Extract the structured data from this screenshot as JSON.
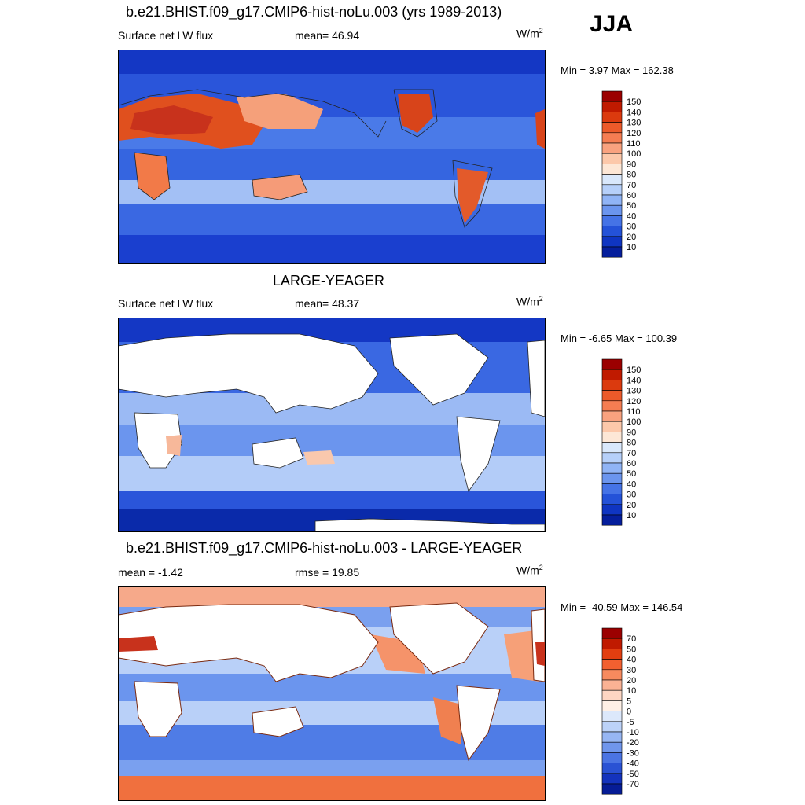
{
  "season": "JJA",
  "colors": {
    "ocean_deep": "#1a3fcf",
    "ocean_mid": "#3f6fe6",
    "ocean_light": "#a9c5f7",
    "land_hot": "#c8321c",
    "land_warm": "#f08a62",
    "land_mask": "#ffffff",
    "coast": "#222222"
  },
  "panels": [
    {
      "title": "b.e21.BHIST.f09_g17.CMIP6-hist-noLu.003 (yrs 1989-2013)",
      "left_label": "Surface net LW flux",
      "center_label": "mean=  46.94",
      "units": "W/m",
      "units_sup": "2",
      "minmax": "Min =   3.97 Max = 162.38",
      "colorbar_colors": [
        "#9b0000",
        "#c01a00",
        "#db3a0e",
        "#ec5a2a",
        "#f57d52",
        "#f9a27f",
        "#fcc8aa",
        "#fde7d6",
        "#d9e8fc",
        "#b6d0fa",
        "#90b4f6",
        "#6b95ee",
        "#4573e6",
        "#2452d8",
        "#0f35c2",
        "#051e9c"
      ],
      "colorbar_labels": [
        "150",
        "140",
        "130",
        "120",
        "110",
        "100",
        "90",
        "80",
        "70",
        "60",
        "50",
        "40",
        "30",
        "20",
        "10"
      ]
    },
    {
      "title": "LARGE-YEAGER",
      "left_label": "Surface net LW flux",
      "center_label": "mean=  48.37",
      "units": "W/m",
      "units_sup": "2",
      "minmax": "Min =  -6.65 Max = 100.39",
      "colorbar_colors": [
        "#9b0000",
        "#c01a00",
        "#db3a0e",
        "#ec5a2a",
        "#f57d52",
        "#f9a27f",
        "#fcc8aa",
        "#fde7d6",
        "#d9e8fc",
        "#b6d0fa",
        "#90b4f6",
        "#6b95ee",
        "#4573e6",
        "#2452d8",
        "#0f35c2",
        "#051e9c"
      ],
      "colorbar_labels": [
        "150",
        "140",
        "130",
        "120",
        "110",
        "100",
        "90",
        "80",
        "70",
        "60",
        "50",
        "40",
        "30",
        "20",
        "10"
      ]
    },
    {
      "title": "b.e21.BHIST.f09_g17.CMIP6-hist-noLu.003 - LARGE-YEAGER",
      "left_label": "mean =  -1.42",
      "center_label": "rmse =  19.85",
      "units": "W/m",
      "units_sup": "2",
      "minmax": "Min = -40.59 Max = 146.54",
      "colorbar_colors": [
        "#9b0000",
        "#c01a00",
        "#e23e10",
        "#f26030",
        "#f78a5e",
        "#fab294",
        "#fdd6c3",
        "#fef0e6",
        "#dce8fb",
        "#bcd2f8",
        "#97b6f3",
        "#7096ec",
        "#4b74e3",
        "#2a52d4",
        "#1433bd",
        "#061c96"
      ],
      "colorbar_labels": [
        "70",
        "50",
        "40",
        "30",
        "20",
        "10",
        "5",
        "0",
        "-5",
        "-10",
        "-20",
        "-30",
        "-40",
        "-50",
        "-70"
      ]
    }
  ]
}
